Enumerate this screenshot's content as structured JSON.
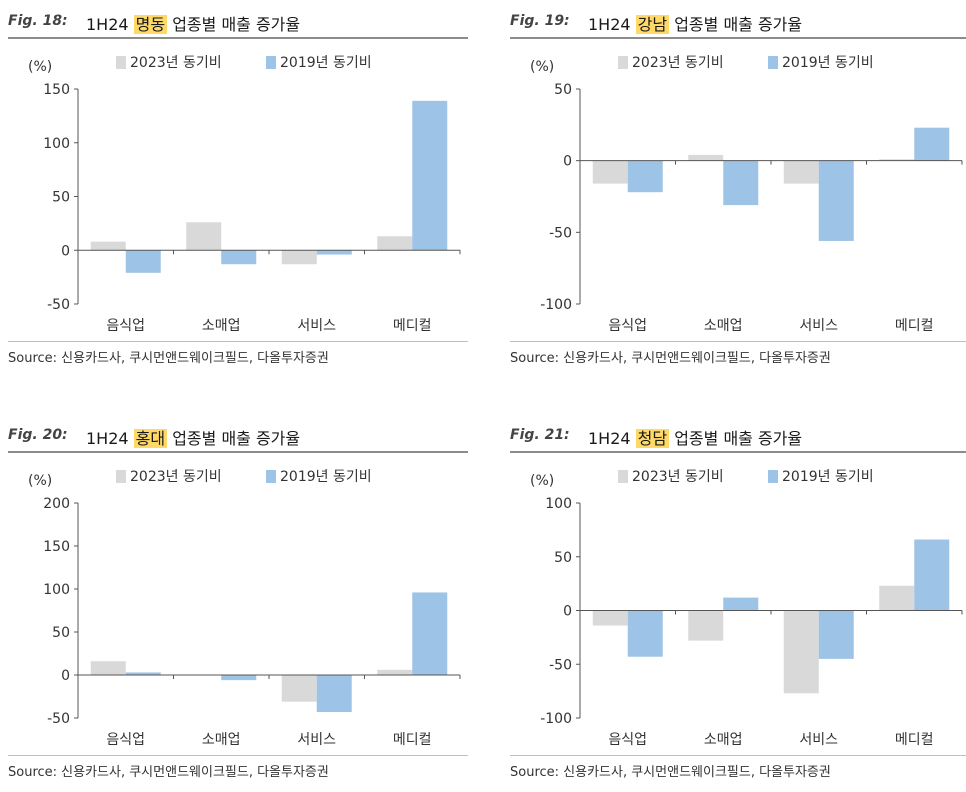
{
  "colors": {
    "series_2023": "#d9d9d9",
    "series_2019": "#9dc3e6",
    "axis": "#555555",
    "highlight": "#ffd966"
  },
  "figures": [
    {
      "label": "Fig. 18:",
      "title_pre": "1H24 ",
      "title_hl": "명동",
      "title_post": " 업종별 매출 증가율",
      "source": "Source: 신용카드사, 쿠시먼앤드웨이크필드, 다올투자증권"
    },
    {
      "label": "Fig. 19:",
      "title_pre": "1H24 ",
      "title_hl": "강남",
      "title_post": " 업종별 매출 증가율",
      "source": "Source: 신용카드사, 쿠시먼앤드웨이크필드, 다올투자증권"
    },
    {
      "label": "Fig. 20:",
      "title_pre": "1H24 ",
      "title_hl": "홍대",
      "title_post": " 업종별 매출 증가율",
      "source": "Source: 신용카드사, 쿠시먼앤드웨이크필드, 다올투자증권"
    },
    {
      "label": "Fig. 21:",
      "title_pre": "1H24 ",
      "title_hl": "청담",
      "title_post": " 업종별 매출 증가율",
      "source": "Source: 신용카드사, 쿠시먼앤드웨이크필드, 다올투자증권"
    }
  ],
  "chart_data": [
    {
      "type": "bar",
      "unit_label": "(%)",
      "ylim": [
        -50,
        150
      ],
      "yticks": [
        -50,
        0,
        50,
        100,
        150
      ],
      "categories": [
        "음식업",
        "소매업",
        "서비스",
        "메디컬"
      ],
      "series": [
        {
          "name": "2023년 동기비",
          "values": [
            8,
            26,
            -13,
            13
          ]
        },
        {
          "name": "2019년 동기비",
          "values": [
            -21,
            -13,
            -4,
            139
          ]
        }
      ]
    },
    {
      "type": "bar",
      "unit_label": "(%)",
      "ylim": [
        -100,
        50
      ],
      "yticks": [
        -100,
        -50,
        0,
        50
      ],
      "categories": [
        "음식업",
        "소매업",
        "서비스",
        "메디컬"
      ],
      "series": [
        {
          "name": "2023년 동기비",
          "values": [
            -16,
            4,
            -16,
            1
          ]
        },
        {
          "name": "2019년 동기비",
          "values": [
            -22,
            -31,
            -56,
            23
          ]
        }
      ]
    },
    {
      "type": "bar",
      "unit_label": "(%)",
      "ylim": [
        -50,
        200
      ],
      "yticks": [
        -50,
        0,
        50,
        100,
        150,
        200
      ],
      "categories": [
        "음식업",
        "소매업",
        "서비스",
        "메디컬"
      ],
      "series": [
        {
          "name": "2023년 동기비",
          "values": [
            16,
            0,
            -31,
            6
          ]
        },
        {
          "name": "2019년 동기비",
          "values": [
            3,
            -6,
            -43,
            96
          ]
        }
      ]
    },
    {
      "type": "bar",
      "unit_label": "(%)",
      "ylim": [
        -100,
        100
      ],
      "yticks": [
        -100,
        -50,
        0,
        50,
        100
      ],
      "categories": [
        "음식업",
        "소매업",
        "서비스",
        "메디컬"
      ],
      "series": [
        {
          "name": "2023년 동기비",
          "values": [
            -14,
            -28,
            -77,
            23
          ]
        },
        {
          "name": "2019년 동기비",
          "values": [
            -43,
            12,
            -45,
            66
          ]
        }
      ]
    }
  ]
}
